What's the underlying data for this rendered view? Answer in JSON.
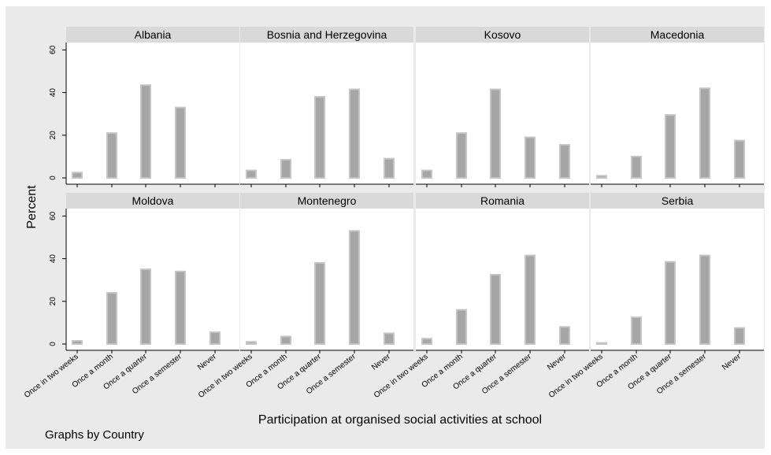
{
  "chart_data": {
    "type": "bar",
    "ylabel": "Percent",
    "xlabel": "Participation at organised social activities at school",
    "note": "Graphs by Country",
    "ylim": [
      0,
      62
    ],
    "yticks": [
      0,
      20,
      40,
      60
    ],
    "categories": [
      "Once in two weeks",
      "Once a month",
      "Once a quarter",
      "Once a semester",
      "Never"
    ],
    "colors": {
      "background": "#eaeaea",
      "plot_bg": "#ffffff",
      "header_bg": "#d9d9d9",
      "bar_fill": "#a6a6a6",
      "bar_edge": "#c4c4c4"
    },
    "panels": [
      {
        "country": "Albania",
        "values": [
          2.5,
          21,
          43.5,
          33,
          0
        ]
      },
      {
        "country": "Bosnia and Herzegovina",
        "values": [
          3.5,
          8.5,
          38,
          41.5,
          9
        ]
      },
      {
        "country": "Kosovo",
        "values": [
          3.5,
          21,
          41.5,
          19,
          15.5
        ]
      },
      {
        "country": "Macedonia",
        "values": [
          1,
          10,
          29.5,
          42,
          17.5
        ]
      },
      {
        "country": "Moldova",
        "values": [
          1.5,
          24,
          35,
          34,
          5.5
        ]
      },
      {
        "country": "Montenegro",
        "values": [
          1,
          3.5,
          38,
          53,
          5
        ]
      },
      {
        "country": "Romania",
        "values": [
          2.5,
          16,
          32.5,
          41.5,
          8
        ]
      },
      {
        "country": "Serbia",
        "values": [
          0.5,
          12.5,
          38.5,
          41.5,
          7.5
        ]
      }
    ]
  }
}
